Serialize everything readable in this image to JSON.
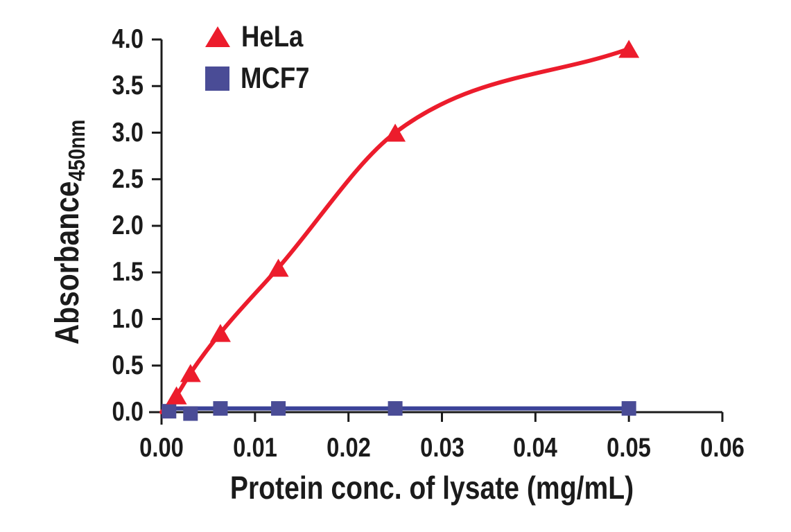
{
  "figure": {
    "background_color": "#ffffff",
    "text_color": "#1b1b1b"
  },
  "chart_data": {
    "type": "line",
    "title": "",
    "xlabel": "Protein conc. of lysate (mg/mL)",
    "ylabel": "Absorbance",
    "ylabel_subscript": "450nm",
    "xlim": [
      0,
      0.06
    ],
    "ylim": [
      0,
      4.0
    ],
    "grid": false,
    "legend_position": "upper-left-inside",
    "x_ticks": [
      0,
      0.01,
      0.02,
      0.03,
      0.04,
      0.05,
      0.06
    ],
    "x_tick_labels": [
      "0.00",
      "0.01",
      "0.02",
      "0.03",
      "0.04",
      "0.05",
      "0.06"
    ],
    "y_ticks": [
      0,
      0.5,
      1.0,
      1.5,
      2.0,
      2.5,
      3.0,
      3.5,
      4.0
    ],
    "y_tick_labels": [
      "0.0",
      "0.5",
      "1.0",
      "1.5",
      "2.0",
      "2.5",
      "3.0",
      "3.5",
      "4.0"
    ],
    "series": [
      {
        "name": "HeLa",
        "marker": "triangle",
        "color": "#EC1C2C",
        "x": [
          0.0016,
          0.0031,
          0.0063,
          0.0125,
          0.025,
          0.05
        ],
        "y": [
          0.18,
          0.42,
          0.85,
          1.55,
          3.0,
          3.9
        ],
        "curve": "smooth-fit",
        "curve_start": {
          "x": 0,
          "y": 0
        }
      },
      {
        "name": "MCF7",
        "marker": "square",
        "color": "#4A4C96",
        "line_color": "#3A4298",
        "x": [
          0.0008,
          0.0031,
          0.0063,
          0.0125,
          0.025,
          0.05
        ],
        "y": [
          0.01,
          -0.015,
          0.04,
          0.04,
          0.04,
          0.04
        ],
        "curve": "flat-line",
        "trend_line": {
          "y": 0.04,
          "x_from": 0,
          "x_to": 0.05
        }
      }
    ]
  }
}
